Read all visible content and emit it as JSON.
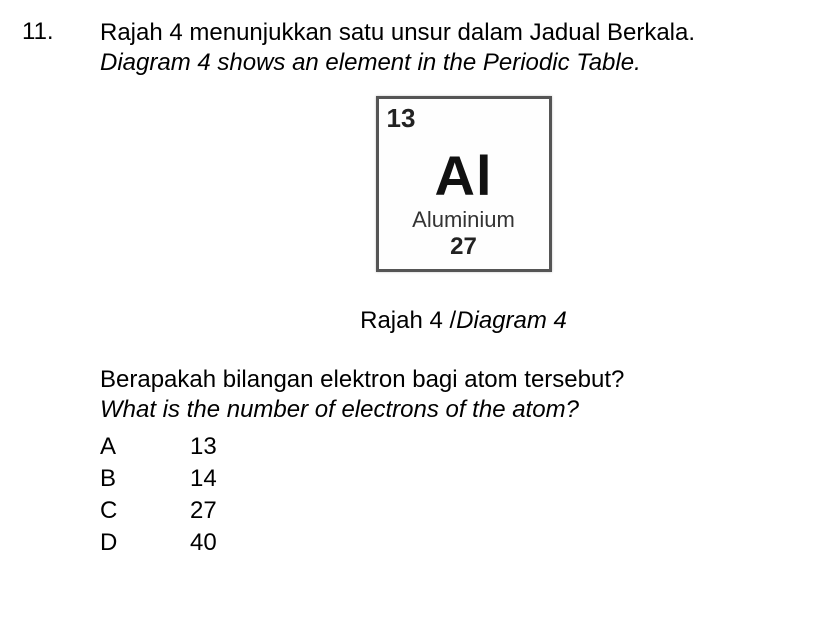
{
  "question_number": "11.",
  "text": {
    "line1_ms": "Rajah 4 menunjukkan satu unsur dalam Jadual Berkala.",
    "line2_en": "Diagram 4  shows an element in the Periodic Table.",
    "q_ms": "Berapakah bilangan elektron bagi atom tersebut?",
    "q_en": "What is the number of electrons of the atom?"
  },
  "element_tile": {
    "atomic_number": "13",
    "symbol": "Al",
    "name": "Aluminium",
    "mass_number": "27",
    "border_color": "#555555",
    "background": "#fefefe",
    "symbol_fontsize": 56,
    "name_fontsize": 22,
    "number_fontsize": 26
  },
  "caption": {
    "ms": "Rajah 4 ",
    "sep": "/",
    "en": "Diagram 4"
  },
  "options": [
    {
      "letter": "A",
      "value": "13"
    },
    {
      "letter": "B",
      "value": "14"
    },
    {
      "letter": "C",
      "value": "27"
    },
    {
      "letter": "D",
      "value": "40"
    }
  ],
  "colors": {
    "text": "#000000",
    "background": "#ffffff"
  }
}
